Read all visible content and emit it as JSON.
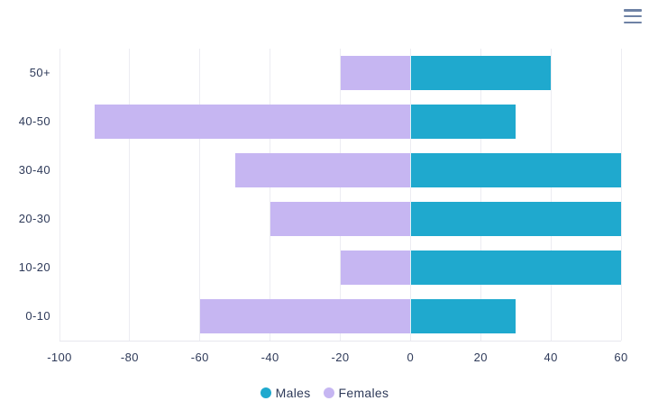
{
  "colors": {
    "background": "#ffffff",
    "text": "#2e3a59",
    "grid": "#ececf2",
    "axis_line": "#e7e7ee",
    "menu_icon": "#6e82a5",
    "males": "#1fa9ce",
    "females": "#c6b6f2"
  },
  "menu": {
    "icon": "hamburger-menu-icon"
  },
  "chart_data": {
    "type": "bar",
    "orientation": "horizontal",
    "title": "",
    "xlabel": "",
    "ylabel": "",
    "categories": [
      "50+",
      "40-50",
      "30-40",
      "20-30",
      "10-20",
      "0-10"
    ],
    "series": [
      {
        "name": "Males",
        "color": "#1fa9ce",
        "values": [
          40,
          30,
          60,
          60,
          60,
          30
        ]
      },
      {
        "name": "Females",
        "color": "#c6b6f2",
        "values": [
          -20,
          -90,
          -50,
          -40,
          -20,
          -60
        ]
      }
    ],
    "xaxis": {
      "min": -100,
      "max": 60,
      "step": 20,
      "tick_labels": [
        "-100",
        "-80",
        "-60",
        "-40",
        "-20",
        "0",
        "20",
        "40",
        "60"
      ]
    },
    "grid": true,
    "legend_position": "bottom",
    "bar_corner": "square"
  }
}
